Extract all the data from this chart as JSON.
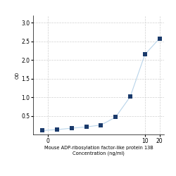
{
  "x": [
    0.078,
    0.156,
    0.313,
    0.625,
    1.25,
    2.5,
    5,
    10,
    20
  ],
  "y": [
    0.112,
    0.138,
    0.175,
    0.21,
    0.26,
    0.47,
    1.02,
    2.15,
    2.58
  ],
  "xlabel_line1": "Mouse ADP-ribosylation factor-like protein 13B",
  "xlabel_line2": "Concentration (ng/ml)",
  "ylabel": "OD",
  "xlim": [
    0.05,
    25
  ],
  "ylim": [
    0,
    3.2
  ],
  "yticks": [
    0.5,
    1.0,
    1.5,
    2.0,
    2.5,
    3.0
  ],
  "xtick_vals": [
    0.1,
    10,
    20
  ],
  "xtick_labels": [
    "0",
    "10",
    "20"
  ],
  "line_color": "#b8d4ea",
  "marker_color": "#1a3a6b",
  "marker_size": 14,
  "grid_color": "#d0d0d0",
  "background_color": "#ffffff",
  "font_size_label": 4.8,
  "font_size_tick": 5.5,
  "fig_width": 2.5,
  "fig_height": 2.5
}
